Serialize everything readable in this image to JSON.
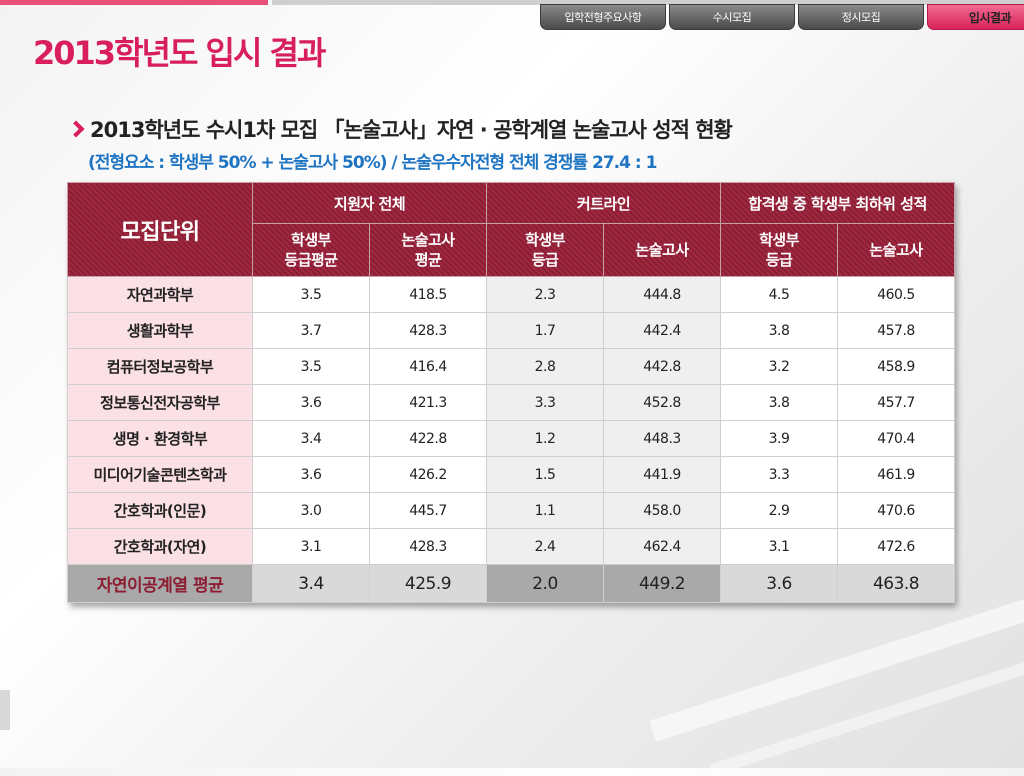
{
  "nav": {
    "tabs": [
      {
        "label": "입학전형주요사항"
      },
      {
        "label": "수시모집"
      },
      {
        "label": "정시모집"
      },
      {
        "label": "입시결과"
      }
    ]
  },
  "page": {
    "title": "2013학년도 입시 결과",
    "subtitle": "2013학년도 수시1차 모집 「논술고사」자연 · 공학계열 논술고사 성적 현황",
    "note": "(전형요소 : 학생부 50% + 논술고사 50%) / 논술우수자전형 전체 경쟁률 27.4 : 1"
  },
  "table": {
    "unit_header": "모집단위",
    "group_headers": [
      "지원자 전체",
      "커트라인",
      "합격생 중 학생부 최하위 성적"
    ],
    "sub_headers": [
      [
        "학생부",
        "등급평균"
      ],
      [
        "논술고사",
        "평균"
      ],
      [
        "학생부",
        "등급"
      ],
      [
        "논술고사"
      ],
      [
        "학생부",
        "등급"
      ],
      [
        "논술고사"
      ]
    ],
    "rows": [
      {
        "name": "자연과학부",
        "v": [
          "3.5",
          "418.5",
          "2.3",
          "444.8",
          "4.5",
          "460.5"
        ]
      },
      {
        "name": "생활과학부",
        "v": [
          "3.7",
          "428.3",
          "1.7",
          "442.4",
          "3.8",
          "457.8"
        ]
      },
      {
        "name": "컴퓨터정보공학부",
        "v": [
          "3.5",
          "416.4",
          "2.8",
          "442.8",
          "3.2",
          "458.9"
        ]
      },
      {
        "name": "정보통신전자공학부",
        "v": [
          "3.6",
          "421.3",
          "3.3",
          "452.8",
          "3.8",
          "457.7"
        ]
      },
      {
        "name": "생명 · 환경학부",
        "v": [
          "3.4",
          "422.8",
          "1.2",
          "448.3",
          "3.9",
          "470.4"
        ]
      },
      {
        "name": "미디어기술콘텐츠학과",
        "v": [
          "3.6",
          "426.2",
          "1.5",
          "441.9",
          "3.3",
          "461.9"
        ]
      },
      {
        "name": "간호학과(인문)",
        "v": [
          "3.0",
          "445.7",
          "1.1",
          "458.0",
          "2.9",
          "470.6"
        ]
      },
      {
        "name": "간호학과(자연)",
        "v": [
          "3.1",
          "428.3",
          "2.4",
          "462.4",
          "3.1",
          "472.6"
        ]
      }
    ],
    "avg": {
      "name": "자연이공계열 평균",
      "v": [
        "3.4",
        "425.9",
        "2.0",
        "449.2",
        "3.6",
        "463.8"
      ]
    }
  }
}
